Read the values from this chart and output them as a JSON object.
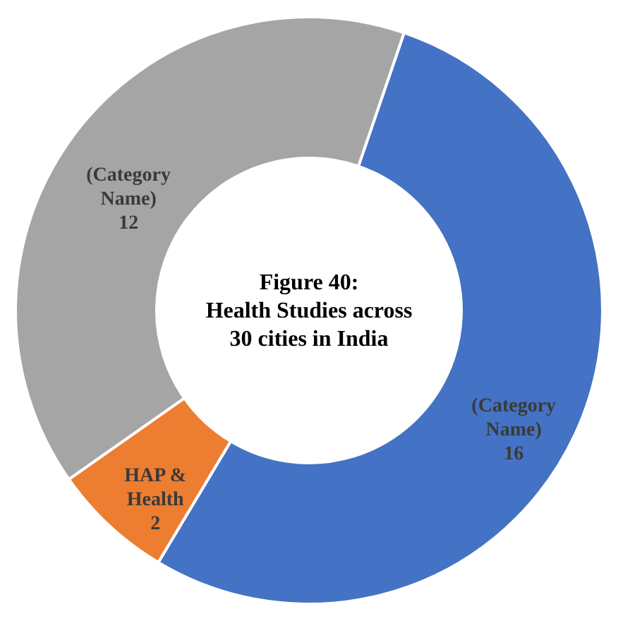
{
  "chart_data": {
    "type": "donut",
    "title": "Figure 40: Health Studies across 30 cities in India",
    "categories": [
      "(Category Name)",
      "HAP & Health",
      "(Category Name)"
    ],
    "values": [
      16,
      2,
      12
    ],
    "colors": [
      "#4472c4",
      "#ed7d31",
      "#a5a5a5"
    ],
    "data_labels": true
  }
}
